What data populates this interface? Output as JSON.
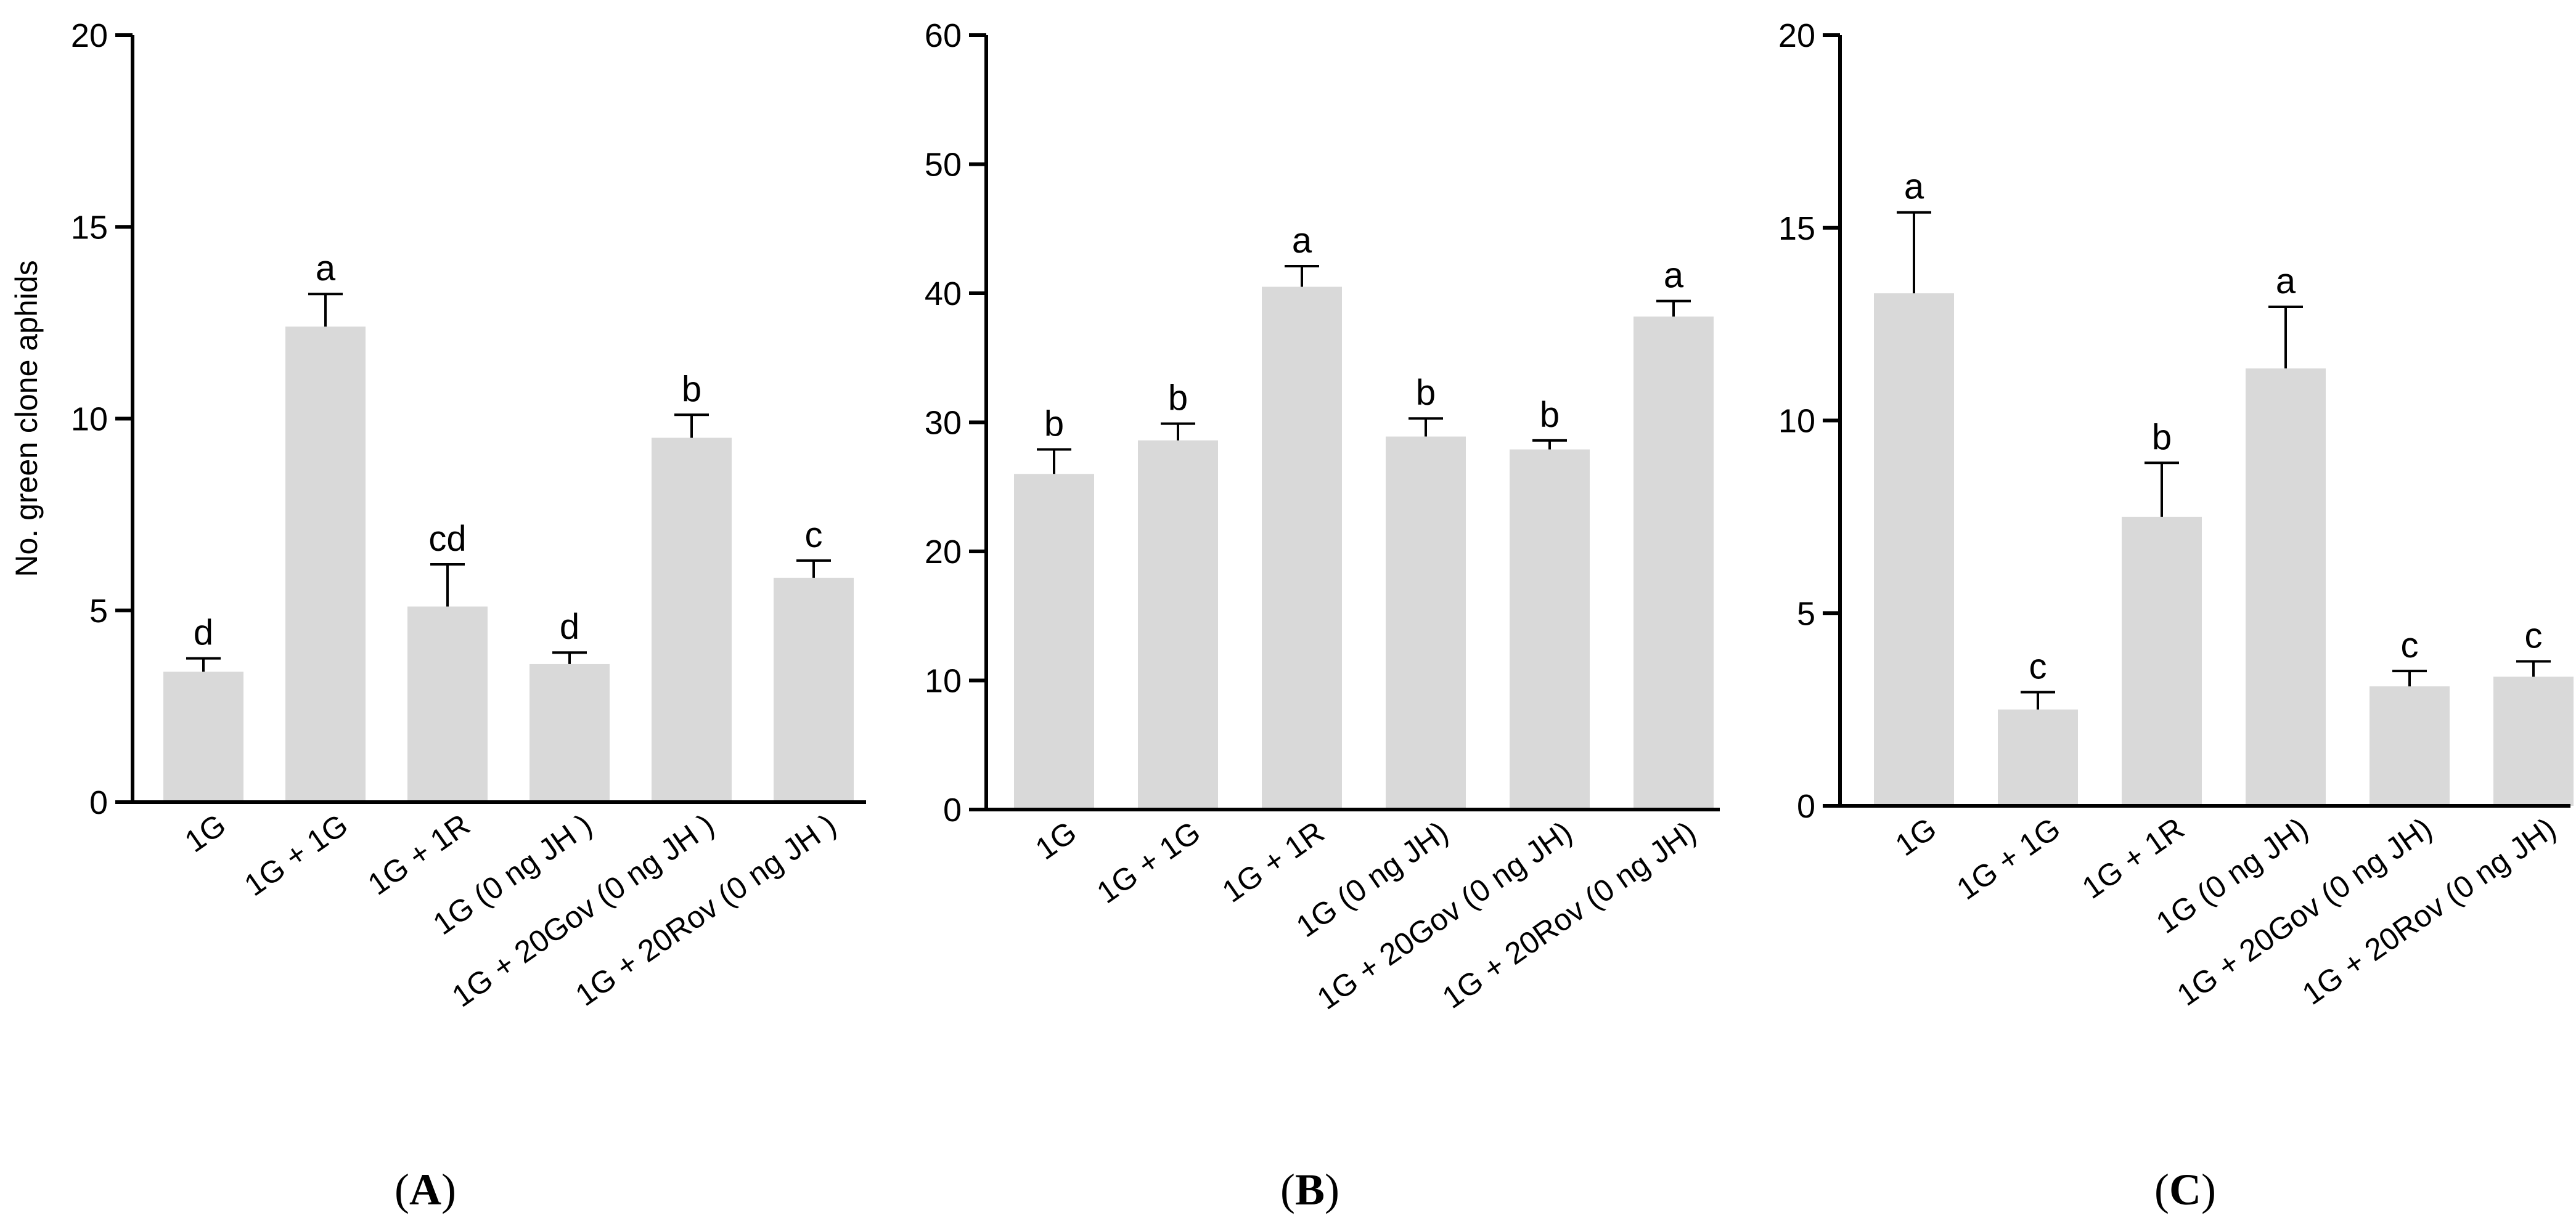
{
  "chart_data": [
    {
      "type": "bar",
      "panel_label": "A",
      "ylabel": "No. green clone aphids",
      "ylim": [
        0,
        20
      ],
      "yticks": [
        0,
        5,
        10,
        15,
        20
      ],
      "bar_color": "#d9d9d9",
      "categories": [
        "1G",
        "1G + 1G",
        "1G + 1R",
        "1G (0 ng JH )",
        "1G + 20Gov (0 ng JH )",
        "1G + 20Rov (0 ng JH )"
      ],
      "values": [
        3.4,
        12.4,
        5.1,
        3.6,
        9.5,
        5.85
      ],
      "errors": [
        0.35,
        0.85,
        1.1,
        0.3,
        0.6,
        0.45
      ],
      "significance": [
        "d",
        "a",
        "cd",
        "d",
        "b",
        "c"
      ]
    },
    {
      "type": "bar",
      "panel_label": "B",
      "ylabel": "",
      "ylim": [
        0,
        60
      ],
      "yticks": [
        0,
        10,
        20,
        30,
        40,
        50,
        60
      ],
      "bar_color": "#d9d9d9",
      "categories": [
        "1G",
        "1G + 1G",
        "1G + 1R",
        "1G (0 ng JH)",
        "1G + 20Gov (0 ng JH)",
        "1G + 20Rov (0 ng JH)"
      ],
      "values": [
        26.0,
        28.6,
        40.5,
        28.9,
        27.9,
        38.2
      ],
      "errors": [
        1.9,
        1.3,
        1.6,
        1.4,
        0.7,
        1.2
      ],
      "significance": [
        "b",
        "b",
        "a",
        "b",
        "b",
        "a"
      ]
    },
    {
      "type": "bar",
      "panel_label": "C",
      "ylabel": "",
      "ylim": [
        0,
        20
      ],
      "yticks": [
        0,
        5,
        10,
        15,
        20
      ],
      "bar_color": "#d9d9d9",
      "categories": [
        "1G",
        "1G + 1G",
        "1G + 1R",
        "1G (0 ng JH)",
        "1G + 20Gov (0 ng JH)",
        "1G + 20Rov (0 ng JH)"
      ],
      "values": [
        13.3,
        2.5,
        7.5,
        11.35,
        3.1,
        3.35
      ],
      "errors": [
        2.1,
        0.45,
        1.4,
        1.6,
        0.4,
        0.4
      ],
      "significance": [
        "a",
        "c",
        "b",
        "a",
        "c",
        "c"
      ]
    }
  ]
}
